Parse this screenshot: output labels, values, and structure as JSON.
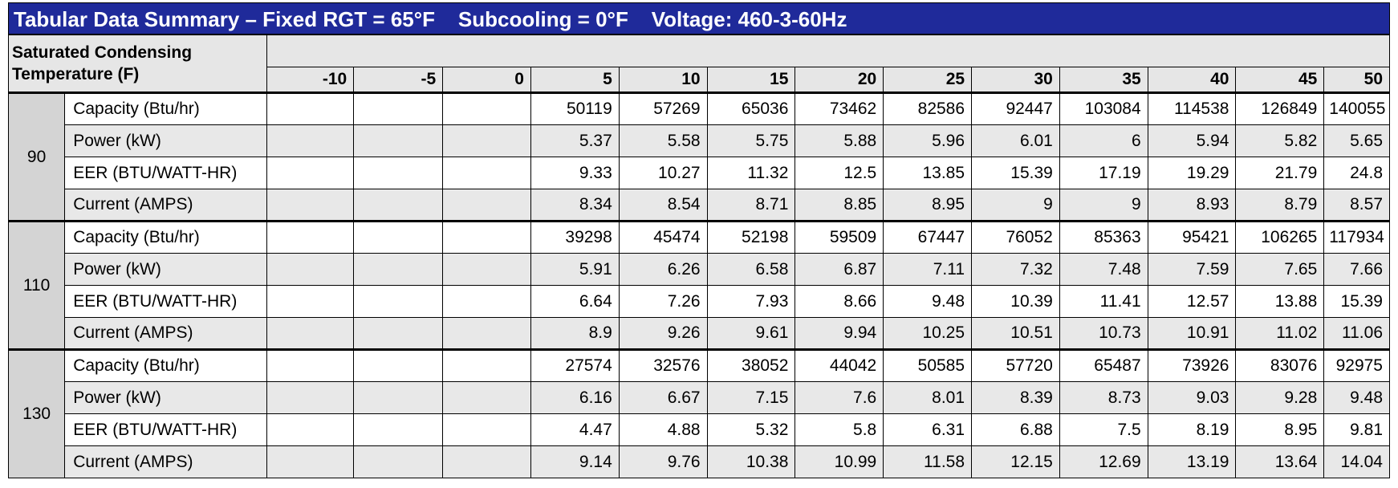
{
  "title": "Tabular Data Summary – Fixed RGT = 65°F    Subcooling = 0°F    Voltage: 460-3-60Hz",
  "header": {
    "label": "Saturated Condensing Temperature (F)",
    "columns": [
      "-10",
      "-5",
      "0",
      "5",
      "10",
      "15",
      "20",
      "25",
      "30",
      "35",
      "40",
      "45",
      "50"
    ]
  },
  "groups": [
    {
      "temp": "90",
      "rows": [
        {
          "metric": "Capacity (Btu/hr)",
          "values": [
            "",
            "",
            "",
            "50119",
            "57269",
            "65036",
            "73462",
            "82586",
            "92447",
            "103084",
            "114538",
            "126849",
            "140055"
          ]
        },
        {
          "metric": "Power (kW)",
          "values": [
            "",
            "",
            "",
            "5.37",
            "5.58",
            "5.75",
            "5.88",
            "5.96",
            "6.01",
            "6",
            "5.94",
            "5.82",
            "5.65"
          ]
        },
        {
          "metric": "EER (BTU/WATT-HR)",
          "values": [
            "",
            "",
            "",
            "9.33",
            "10.27",
            "11.32",
            "12.5",
            "13.85",
            "15.39",
            "17.19",
            "19.29",
            "21.79",
            "24.8"
          ]
        },
        {
          "metric": "Current (AMPS)",
          "values": [
            "",
            "",
            "",
            "8.34",
            "8.54",
            "8.71",
            "8.85",
            "8.95",
            "9",
            "9",
            "8.93",
            "8.79",
            "8.57"
          ]
        }
      ]
    },
    {
      "temp": "110",
      "rows": [
        {
          "metric": "Capacity (Btu/hr)",
          "values": [
            "",
            "",
            "",
            "39298",
            "45474",
            "52198",
            "59509",
            "67447",
            "76052",
            "85363",
            "95421",
            "106265",
            "117934"
          ]
        },
        {
          "metric": "Power (kW)",
          "values": [
            "",
            "",
            "",
            "5.91",
            "6.26",
            "6.58",
            "6.87",
            "7.11",
            "7.32",
            "7.48",
            "7.59",
            "7.65",
            "7.66"
          ]
        },
        {
          "metric": "EER (BTU/WATT-HR)",
          "values": [
            "",
            "",
            "",
            "6.64",
            "7.26",
            "7.93",
            "8.66",
            "9.48",
            "10.39",
            "11.41",
            "12.57",
            "13.88",
            "15.39"
          ]
        },
        {
          "metric": "Current (AMPS)",
          "values": [
            "",
            "",
            "",
            "8.9",
            "9.26",
            "9.61",
            "9.94",
            "10.25",
            "10.51",
            "10.73",
            "10.91",
            "11.02",
            "11.06"
          ]
        }
      ]
    },
    {
      "temp": "130",
      "rows": [
        {
          "metric": "Capacity (Btu/hr)",
          "values": [
            "",
            "",
            "",
            "27574",
            "32576",
            "38052",
            "44042",
            "50585",
            "57720",
            "65487",
            "73926",
            "83076",
            "92975"
          ]
        },
        {
          "metric": "Power (kW)",
          "values": [
            "",
            "",
            "",
            "6.16",
            "6.67",
            "7.15",
            "7.6",
            "8.01",
            "8.39",
            "8.73",
            "9.03",
            "9.28",
            "9.48"
          ]
        },
        {
          "metric": "EER (BTU/WATT-HR)",
          "values": [
            "",
            "",
            "",
            "4.47",
            "4.88",
            "5.32",
            "5.8",
            "6.31",
            "6.88",
            "7.5",
            "8.19",
            "8.95",
            "9.81"
          ]
        },
        {
          "metric": "Current (AMPS)",
          "values": [
            "",
            "",
            "",
            "9.14",
            "9.76",
            "10.38",
            "10.99",
            "11.58",
            "12.15",
            "12.69",
            "13.19",
            "13.64",
            "14.04"
          ]
        }
      ]
    }
  ]
}
